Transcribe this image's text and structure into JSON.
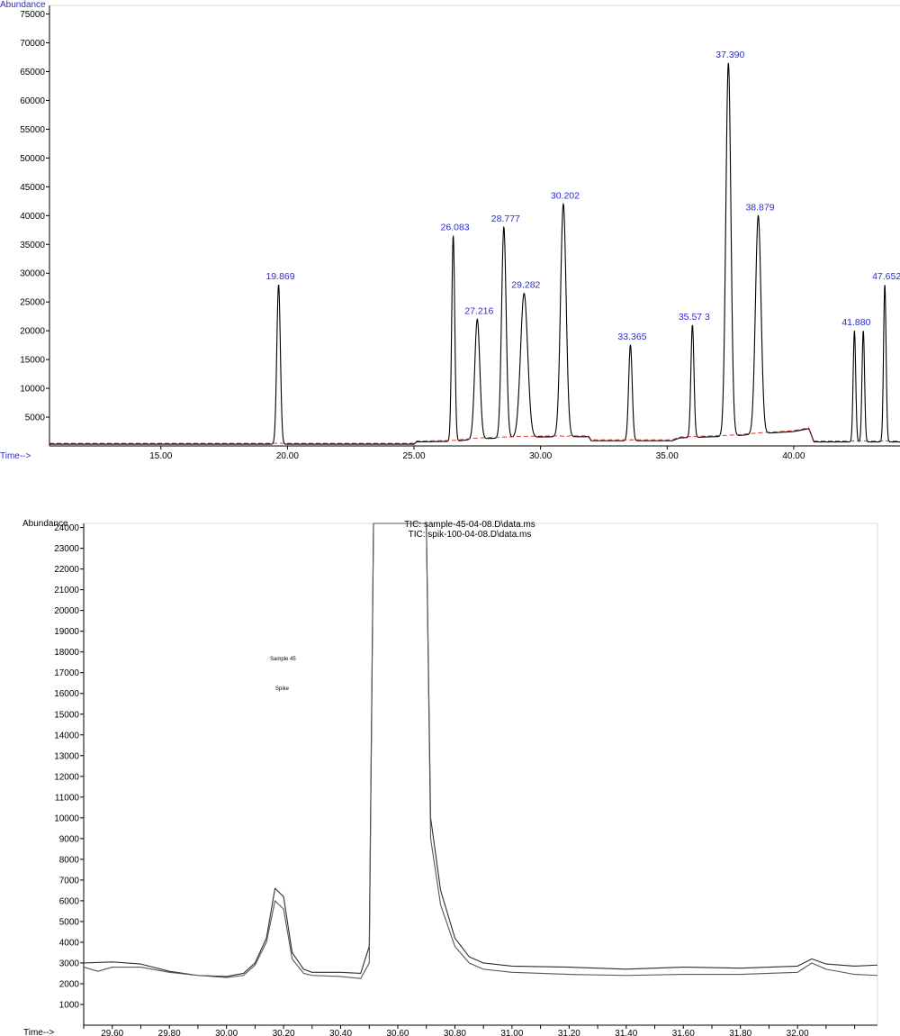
{
  "chart_data": [
    {
      "type": "line",
      "ylabel": "Abundance",
      "xlabel": "Time-->",
      "xlim": [
        10.6,
        44.2
      ],
      "ylim": [
        0,
        76500
      ],
      "y_ticks": [
        {
          "value": 5000,
          "label": "5000"
        },
        {
          "value": 10000,
          "label": "10000"
        },
        {
          "value": 15000,
          "label": "15000"
        },
        {
          "value": 20000,
          "label": "20000"
        },
        {
          "value": 25000,
          "label": "25000"
        },
        {
          "value": 30000,
          "label": "30000"
        },
        {
          "value": 35000,
          "label": "35000"
        },
        {
          "value": 40000,
          "label": "40000"
        },
        {
          "value": 45000,
          "label": "45000"
        },
        {
          "value": 50000,
          "label": "50000"
        },
        {
          "value": 55000,
          "label": "55000"
        },
        {
          "value": 60000,
          "label": "60000"
        },
        {
          "value": 65000,
          "label": "65000"
        },
        {
          "value": 70000,
          "label": "70000"
        },
        {
          "value": 75000,
          "label": "75000"
        }
      ],
      "x_ticks": [
        {
          "value": 15,
          "label": "15.00"
        },
        {
          "value": 20,
          "label": "20.00"
        },
        {
          "value": 25,
          "label": "25.00"
        },
        {
          "value": 30,
          "label": "30.00"
        },
        {
          "value": 35,
          "label": "35.00"
        },
        {
          "value": 40,
          "label": "40.00"
        }
      ],
      "baseline": [
        [
          10.6,
          300
        ],
        [
          19.2,
          300
        ],
        [
          20.2,
          300
        ],
        [
          25.0,
          300
        ],
        [
          25.1,
          700
        ],
        [
          26.6,
          800
        ],
        [
          27.4,
          1200
        ],
        [
          29.2,
          1500
        ],
        [
          30.7,
          1600
        ],
        [
          31.0,
          1500
        ],
        [
          31.2,
          1600
        ],
        [
          31.9,
          1600
        ],
        [
          32.0,
          900
        ],
        [
          35.2,
          900
        ],
        [
          35.5,
          1400
        ],
        [
          37.5,
          1700
        ],
        [
          38.9,
          2200
        ],
        [
          40.0,
          2500
        ],
        [
          40.6,
          3000
        ],
        [
          40.8,
          700
        ],
        [
          44.2,
          700
        ]
      ],
      "peaks": [
        {
          "label": "19.869",
          "time": 19.65,
          "height": 28000,
          "width": 0.07
        },
        {
          "label": "26.083",
          "time": 26.55,
          "height": 36500,
          "width": 0.06
        },
        {
          "label": "27.216",
          "time": 27.5,
          "height": 22000,
          "width": 0.1
        },
        {
          "label": "28.777",
          "time": 28.55,
          "height": 38000,
          "width": 0.09
        },
        {
          "label": "29.282",
          "time": 29.35,
          "height": 26500,
          "width": 0.14
        },
        {
          "label": "30.202",
          "time": 30.9,
          "height": 42000,
          "width": 0.11
        },
        {
          "label": "33.365",
          "time": 33.55,
          "height": 17500,
          "width": 0.07
        },
        {
          "label": "35.57 3",
          "time": 36.0,
          "height": 21000,
          "width": 0.06
        },
        {
          "label": "37.390",
          "time": 37.42,
          "height": 66500,
          "width": 0.1
        },
        {
          "label": "38.879",
          "time": 38.6,
          "height": 40000,
          "width": 0.11
        },
        {
          "label": "41.880",
          "time": 42.4,
          "height": 20000,
          "width": 0.05
        },
        {
          "label": "",
          "time": 42.75,
          "height": 20000,
          "width": 0.05
        },
        {
          "label": "47.652",
          "time": 43.6,
          "height": 28000,
          "width": 0.05
        }
      ]
    },
    {
      "type": "line",
      "ylabel": "Abundance",
      "xlabel": "Time-->",
      "xlim": [
        29.5,
        32.28
      ],
      "ylim": [
        0,
        24200
      ],
      "y_ticks": [
        {
          "value": 1000,
          "label": "1000"
        },
        {
          "value": 2000,
          "label": "2000"
        },
        {
          "value": 3000,
          "label": "3000"
        },
        {
          "value": 4000,
          "label": "4000"
        },
        {
          "value": 5000,
          "label": "5000"
        },
        {
          "value": 6000,
          "label": "6000"
        },
        {
          "value": 7000,
          "label": "7000"
        },
        {
          "value": 8000,
          "label": "8000"
        },
        {
          "value": 9000,
          "label": "9000"
        },
        {
          "value": 10000,
          "label": "10000"
        },
        {
          "value": 11000,
          "label": "11000"
        },
        {
          "value": 12000,
          "label": "12000"
        },
        {
          "value": 13000,
          "label": "13000"
        },
        {
          "value": 14000,
          "label": "14000"
        },
        {
          "value": 15000,
          "label": "15000"
        },
        {
          "value": 16000,
          "label": "16000"
        },
        {
          "value": 17000,
          "label": "17000"
        },
        {
          "value": 18000,
          "label": "18000"
        },
        {
          "value": 19000,
          "label": "19000"
        },
        {
          "value": 20000,
          "label": "20000"
        },
        {
          "value": 21000,
          "label": "21000"
        },
        {
          "value": 22000,
          "label": "22000"
        },
        {
          "value": 23000,
          "label": "23000"
        },
        {
          "value": 24000,
          "label": "24000"
        }
      ],
      "x_ticks": [
        {
          "value": 29.6,
          "label": "29.60"
        },
        {
          "value": 29.8,
          "label": "29.80"
        },
        {
          "value": 30.0,
          "label": "30.00"
        },
        {
          "value": 30.2,
          "label": "30.20"
        },
        {
          "value": 30.4,
          "label": "30.40"
        },
        {
          "value": 30.6,
          "label": "30.60"
        },
        {
          "value": 30.8,
          "label": "30.80"
        },
        {
          "value": 31.0,
          "label": "31.00"
        },
        {
          "value": 31.2,
          "label": "31.20"
        },
        {
          "value": 31.4,
          "label": "31.40"
        },
        {
          "value": 31.6,
          "label": "31.60"
        },
        {
          "value": 31.8,
          "label": "31.80"
        },
        {
          "value": 32.0,
          "label": "32.00"
        }
      ],
      "series": [
        {
          "name": "TIC: sample-45-04-08.D\\data.ms",
          "points": [
            [
              29.5,
              3000
            ],
            [
              29.6,
              3050
            ],
            [
              29.7,
              2950
            ],
            [
              29.8,
              2600
            ],
            [
              29.9,
              2400
            ],
            [
              30.0,
              2350
            ],
            [
              30.06,
              2500
            ],
            [
              30.1,
              3000
            ],
            [
              30.14,
              4200
            ],
            [
              30.17,
              6600
            ],
            [
              30.2,
              6200
            ],
            [
              30.23,
              3500
            ],
            [
              30.27,
              2700
            ],
            [
              30.3,
              2550
            ],
            [
              30.4,
              2550
            ],
            [
              30.47,
              2500
            ],
            [
              30.5,
              3800
            ],
            [
              30.515,
              24200
            ],
            [
              30.7,
              24200
            ],
            [
              30.715,
              10000
            ],
            [
              30.75,
              6500
            ],
            [
              30.8,
              4200
            ],
            [
              30.85,
              3300
            ],
            [
              30.9,
              3000
            ],
            [
              31.0,
              2850
            ],
            [
              31.2,
              2800
            ],
            [
              31.4,
              2700
            ],
            [
              31.6,
              2800
            ],
            [
              31.8,
              2750
            ],
            [
              32.0,
              2850
            ],
            [
              32.05,
              3200
            ],
            [
              32.1,
              2950
            ],
            [
              32.2,
              2850
            ],
            [
              32.28,
              2900
            ]
          ]
        },
        {
          "name": "TIC: spik-100-04-08.D\\data.ms",
          "points": [
            [
              29.5,
              2800
            ],
            [
              29.55,
              2600
            ],
            [
              29.6,
              2800
            ],
            [
              29.7,
              2800
            ],
            [
              29.8,
              2550
            ],
            [
              29.9,
              2400
            ],
            [
              30.0,
              2300
            ],
            [
              30.06,
              2400
            ],
            [
              30.1,
              2900
            ],
            [
              30.14,
              4000
            ],
            [
              30.17,
              6000
            ],
            [
              30.2,
              5600
            ],
            [
              30.23,
              3200
            ],
            [
              30.27,
              2500
            ],
            [
              30.3,
              2400
            ],
            [
              30.4,
              2350
            ],
            [
              30.47,
              2250
            ],
            [
              30.5,
              3000
            ],
            [
              30.515,
              24200
            ],
            [
              30.7,
              24200
            ],
            [
              30.715,
              9000
            ],
            [
              30.75,
              5800
            ],
            [
              30.8,
              3800
            ],
            [
              30.85,
              3000
            ],
            [
              30.9,
              2700
            ],
            [
              31.0,
              2550
            ],
            [
              31.2,
              2450
            ],
            [
              31.4,
              2400
            ],
            [
              31.6,
              2450
            ],
            [
              31.8,
              2450
            ],
            [
              32.0,
              2550
            ],
            [
              32.05,
              3000
            ],
            [
              32.1,
              2700
            ],
            [
              32.2,
              2450
            ],
            [
              32.28,
              2400
            ]
          ]
        }
      ],
      "annotations": [
        "Sample 45",
        "Spike"
      ]
    }
  ]
}
